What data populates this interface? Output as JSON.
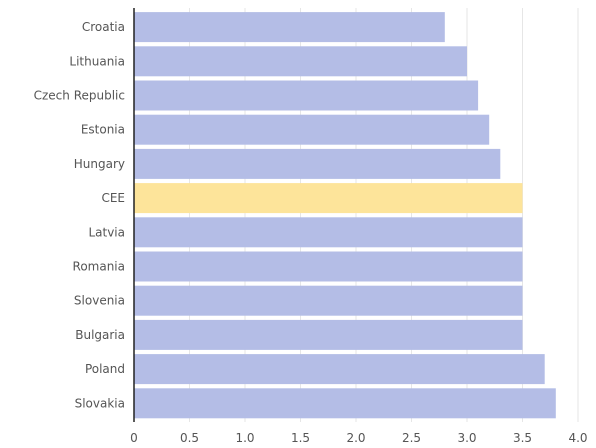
{
  "chart_data": {
    "type": "bar",
    "orientation": "horizontal",
    "categories": [
      "Croatia",
      "Lithuania",
      "Czech Republic",
      "Estonia",
      "Hungary",
      "CEE",
      "Latvia",
      "Romania",
      "Slovenia",
      "Bulgaria",
      "Poland",
      "Slovakia"
    ],
    "values": [
      2.8,
      3.0,
      3.1,
      3.2,
      3.3,
      3.5,
      3.5,
      3.5,
      3.5,
      3.5,
      3.7,
      3.8
    ],
    "highlight": [
      "CEE"
    ],
    "xlim": [
      0,
      4.0
    ],
    "x_ticks": [
      "0",
      "0.5",
      "1.0",
      "1.5",
      "2.0",
      "2.5",
      "3.0",
      "3.5",
      "4.0"
    ],
    "grid": true,
    "title": "",
    "xlabel": "",
    "ylabel": ""
  },
  "colors": {
    "bar": "#b4bde6",
    "highlight": "#fde49a",
    "grid": "#e6e6e6",
    "axis": "#222222",
    "text": "#555555"
  }
}
